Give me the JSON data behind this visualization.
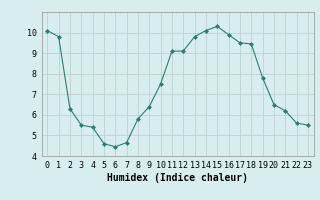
{
  "xlabel": "Humidex (Indice chaleur)",
  "ylabel": "",
  "x": [
    0,
    1,
    2,
    3,
    4,
    5,
    6,
    7,
    8,
    9,
    10,
    11,
    12,
    13,
    14,
    15,
    16,
    17,
    18,
    19,
    20,
    21,
    22,
    23
  ],
  "y": [
    10.1,
    9.8,
    6.3,
    5.5,
    5.4,
    4.6,
    4.45,
    4.65,
    5.8,
    6.4,
    7.5,
    9.1,
    9.1,
    9.8,
    10.1,
    10.3,
    9.9,
    9.5,
    9.45,
    7.8,
    6.5,
    6.2,
    5.6,
    5.5
  ],
  "line_color": "#2d7d6e",
  "marker": "D",
  "marker_size": 2,
  "bg_color": "#d8eeee",
  "grid_color": "#c0d0d0",
  "axis_bg": "#d8eeee",
  "ylim": [
    4,
    11
  ],
  "xlim": [
    -0.5,
    23.5
  ],
  "yticks": [
    4,
    5,
    6,
    7,
    8,
    9,
    10
  ],
  "xtick_labels": [
    "0",
    "1",
    "2",
    "3",
    "4",
    "5",
    "6",
    "7",
    "8",
    "9",
    "10",
    "11",
    "12",
    "13",
    "14",
    "15",
    "16",
    "17",
    "18",
    "19",
    "20",
    "21",
    "22",
    "23"
  ],
  "xlabel_fontsize": 7,
  "tick_fontsize": 6,
  "line_width": 0.8
}
